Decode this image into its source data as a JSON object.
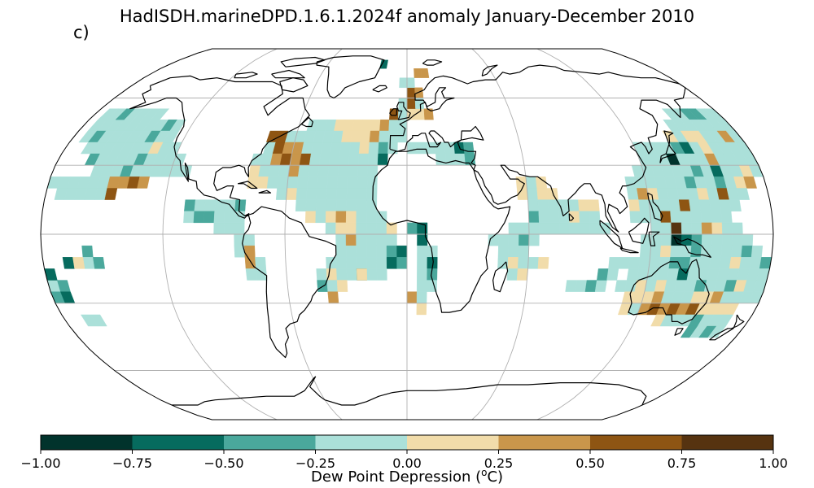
{
  "title": "HadISDH.marineDPD.1.6.1.2024f anomaly January-December 2010",
  "panel_label": "c)",
  "colorbar": {
    "label_prefix": "Dew Point Depression (",
    "label_sup": "o",
    "label_suffix": "C)",
    "ticks": [
      "−1.00",
      "−0.75",
      "−0.50",
      "−0.25",
      "0.00",
      "0.25",
      "0.50",
      "0.75",
      "1.00"
    ],
    "colors": [
      "#01332c",
      "#066b5e",
      "#4aa89c",
      "#abe0d9",
      "#f1dcaa",
      "#c9964b",
      "#8e5513",
      "#563310"
    ]
  },
  "map": {
    "projection": "robinson",
    "gridline_color": "#b0b0b0",
    "coast_color": "#000000"
  }
}
